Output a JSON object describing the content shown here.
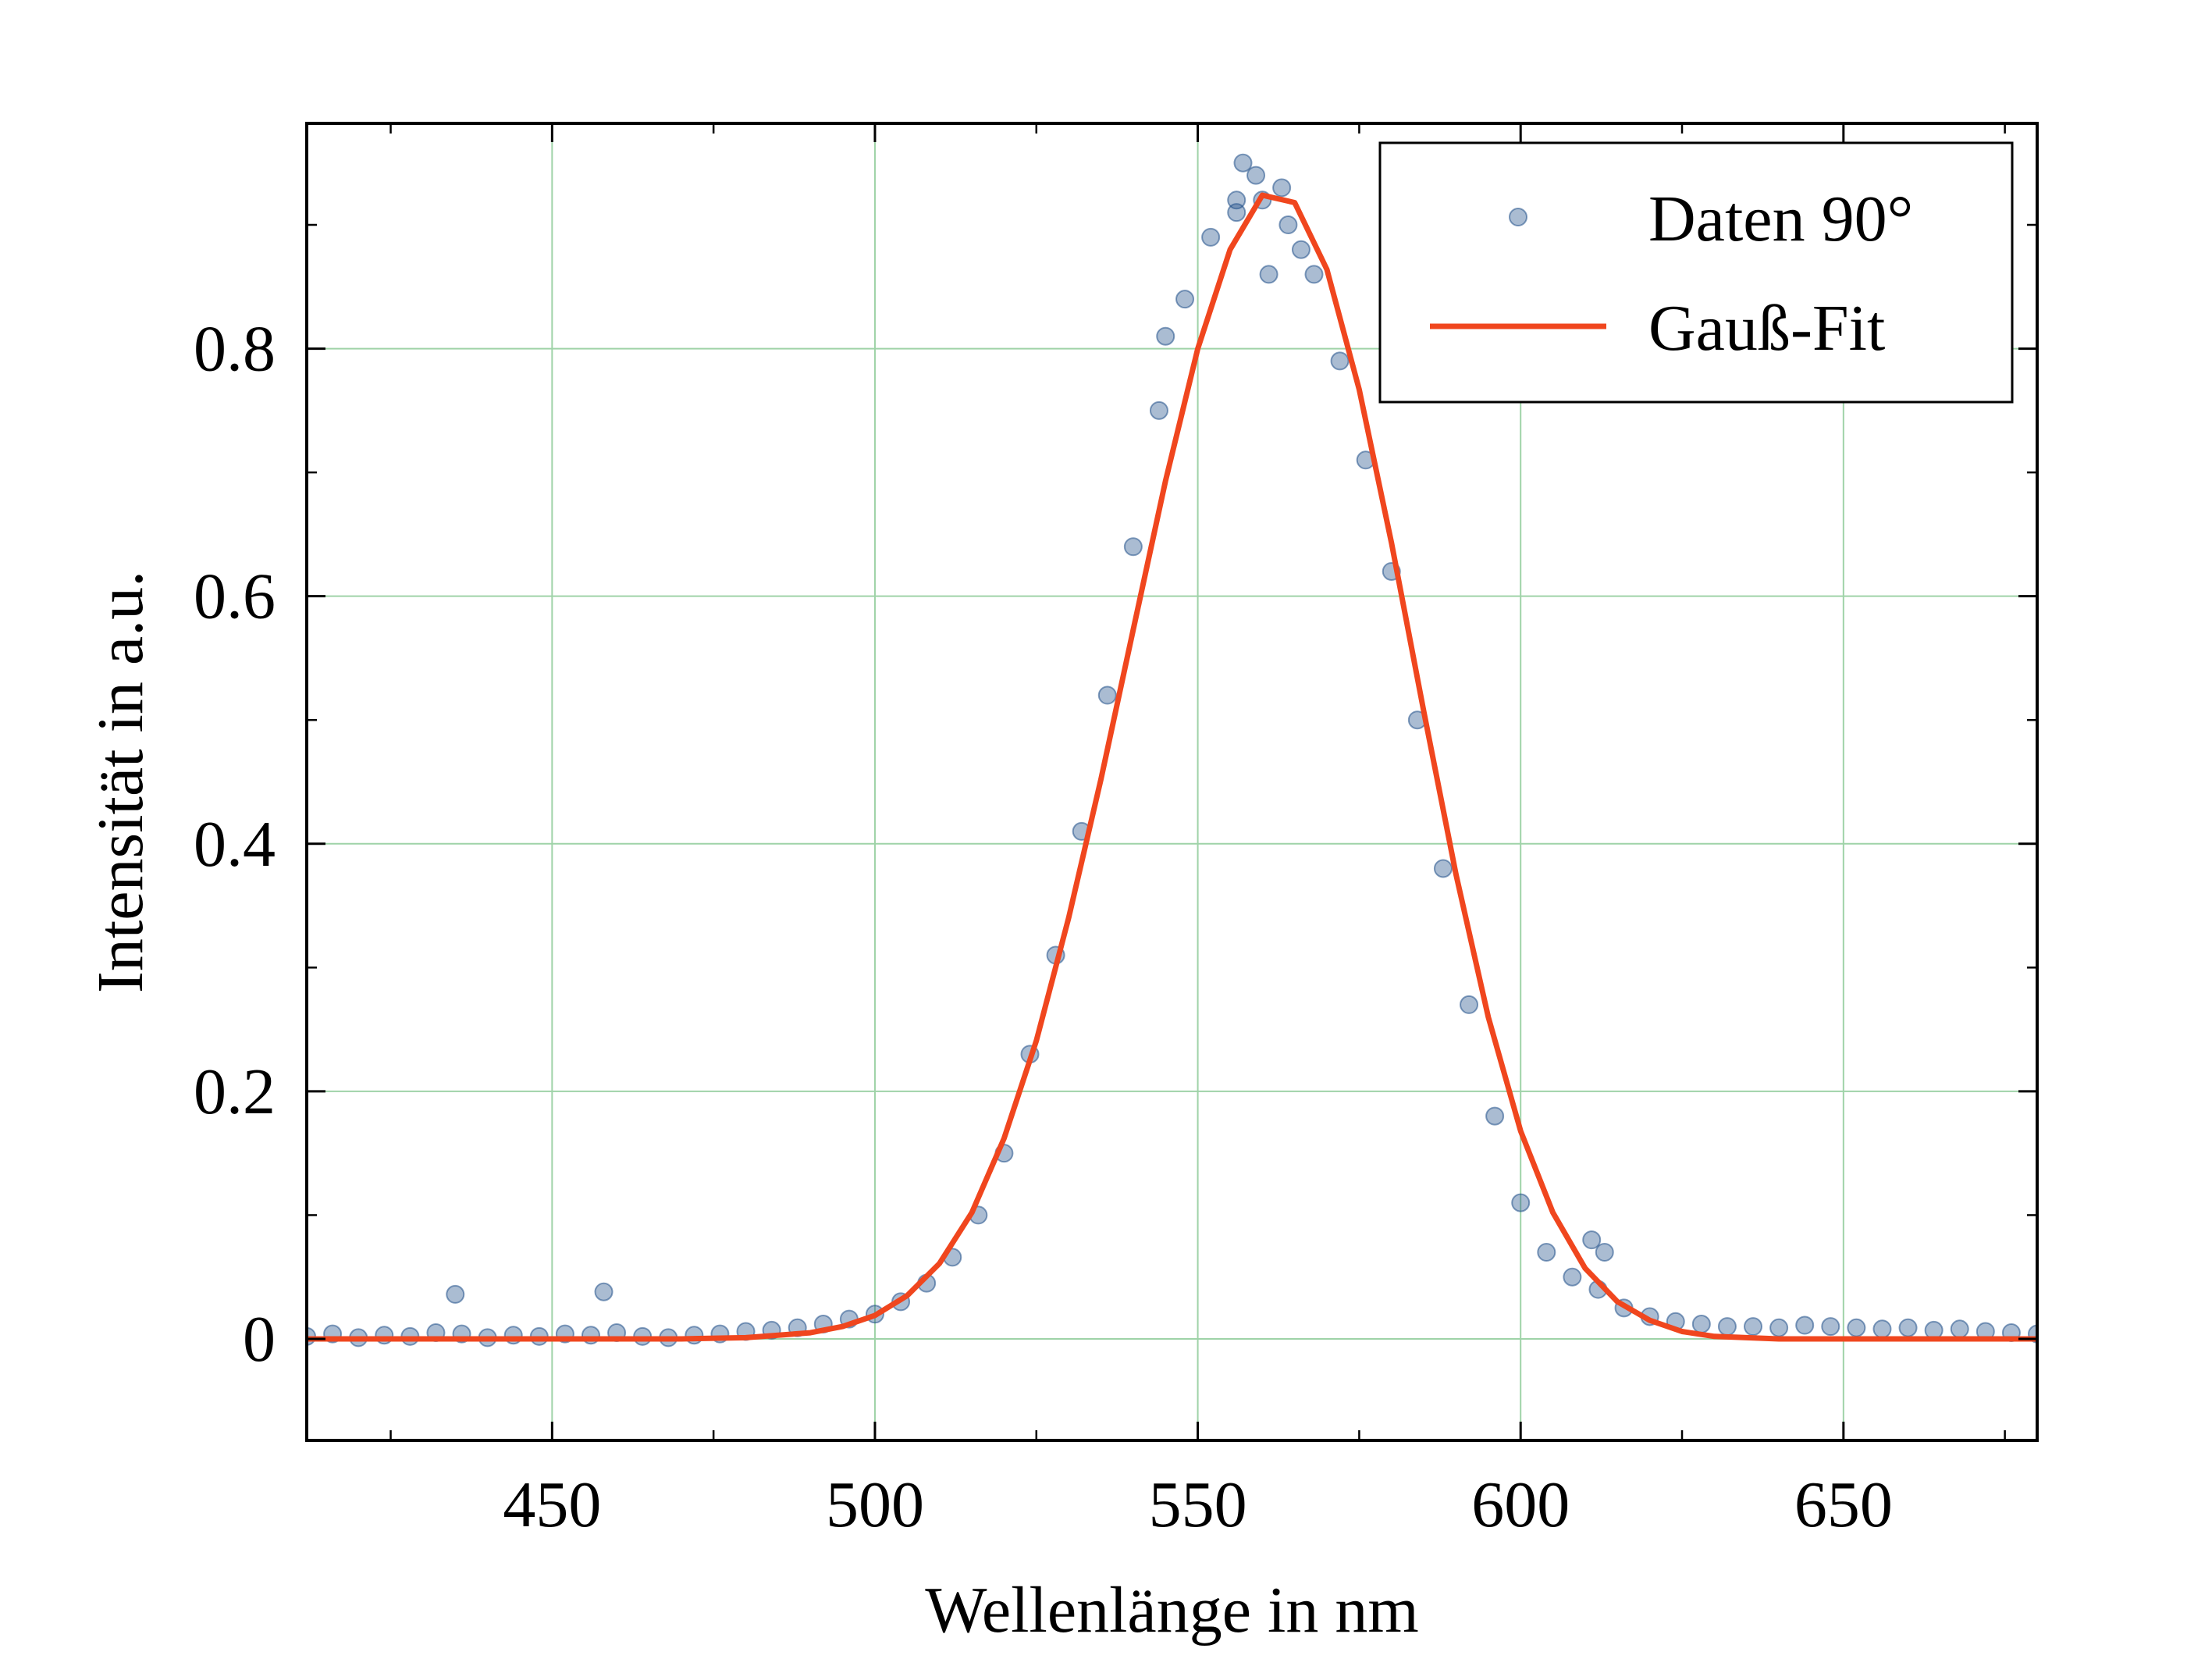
{
  "chart_data": {
    "type": "scatter",
    "xlabel": "Wellenlänge in nm",
    "ylabel": "Intensität in a.u.",
    "xlim": [
      412,
      680
    ],
    "ylim": [
      -0.082,
      0.982
    ],
    "x_ticks": [
      450,
      500,
      550,
      600,
      650
    ],
    "x_tick_labels": [
      "450",
      "500",
      "550",
      "600",
      "650"
    ],
    "x_minor_ticks": [
      425,
      475,
      525,
      575,
      625,
      675
    ],
    "y_ticks": [
      0,
      0.2,
      0.4,
      0.6,
      0.8
    ],
    "y_tick_labels": [
      "0",
      "0.2",
      "0.4",
      "0.6",
      "0.8"
    ],
    "y_minor_ticks": [
      0.1,
      0.3,
      0.5,
      0.7,
      0.9
    ],
    "grid": true,
    "legend_position": "top-right",
    "colors": {
      "data": "#1f4e89",
      "fit": "#f0461e",
      "grid": "#9fd3a8",
      "axes": "#000000"
    },
    "series": [
      {
        "name": "Daten 90°",
        "kind": "scatter",
        "x": [
          412,
          416,
          420,
          424,
          428,
          432,
          436,
          440,
          444,
          448,
          452,
          456,
          460,
          464,
          468,
          472,
          476,
          480,
          484,
          488,
          492,
          496,
          500,
          504,
          508,
          512,
          516,
          520,
          524,
          528,
          532,
          536,
          540,
          544,
          548,
          552,
          556,
          560,
          564,
          568,
          572,
          576,
          580,
          584,
          588,
          592,
          596,
          600,
          604,
          608,
          612,
          616,
          620,
          624,
          628,
          632,
          636,
          640,
          644,
          648,
          652,
          656,
          660,
          664,
          668,
          672,
          676,
          680,
          435,
          458,
          557,
          559,
          561,
          556,
          563,
          611,
          613,
          545,
          566
        ],
        "y": [
          0.002,
          0.004,
          0.001,
          0.003,
          0.002,
          0.005,
          0.004,
          0.001,
          0.003,
          0.002,
          0.004,
          0.003,
          0.005,
          0.002,
          0.001,
          0.003,
          0.004,
          0.006,
          0.007,
          0.009,
          0.012,
          0.016,
          0.02,
          0.03,
          0.045,
          0.066,
          0.1,
          0.15,
          0.23,
          0.31,
          0.41,
          0.52,
          0.64,
          0.75,
          0.84,
          0.89,
          0.91,
          0.92,
          0.9,
          0.86,
          0.79,
          0.71,
          0.62,
          0.5,
          0.38,
          0.27,
          0.18,
          0.11,
          0.07,
          0.05,
          0.04,
          0.025,
          0.018,
          0.014,
          0.012,
          0.01,
          0.01,
          0.009,
          0.011,
          0.01,
          0.009,
          0.008,
          0.009,
          0.007,
          0.008,
          0.006,
          0.005,
          0.004,
          0.036,
          0.038,
          0.95,
          0.94,
          0.86,
          0.92,
          0.93,
          0.08,
          0.07,
          0.81,
          0.88
        ]
      },
      {
        "name": "Gauß-Fit",
        "kind": "line",
        "x": [
          412,
          420,
          430,
          440,
          450,
          460,
          470,
          480,
          490,
          495,
          500,
          505,
          510,
          515,
          520,
          525,
          530,
          535,
          540,
          545,
          550,
          555,
          560,
          565,
          570,
          575,
          580,
          585,
          590,
          595,
          600,
          605,
          610,
          615,
          620,
          625,
          630,
          640,
          650,
          660,
          670,
          680
        ],
        "y": [
          0,
          0,
          0,
          0,
          0,
          0,
          0,
          0.001,
          0.005,
          0.01,
          0.019,
          0.035,
          0.061,
          0.102,
          0.162,
          0.241,
          0.34,
          0.452,
          0.573,
          0.693,
          0.8,
          0.88,
          0.924,
          0.918,
          0.864,
          0.767,
          0.643,
          0.507,
          0.375,
          0.26,
          0.168,
          0.102,
          0.057,
          0.03,
          0.015,
          0.006,
          0.002,
          0,
          0,
          0,
          0,
          0
        ]
      }
    ]
  }
}
